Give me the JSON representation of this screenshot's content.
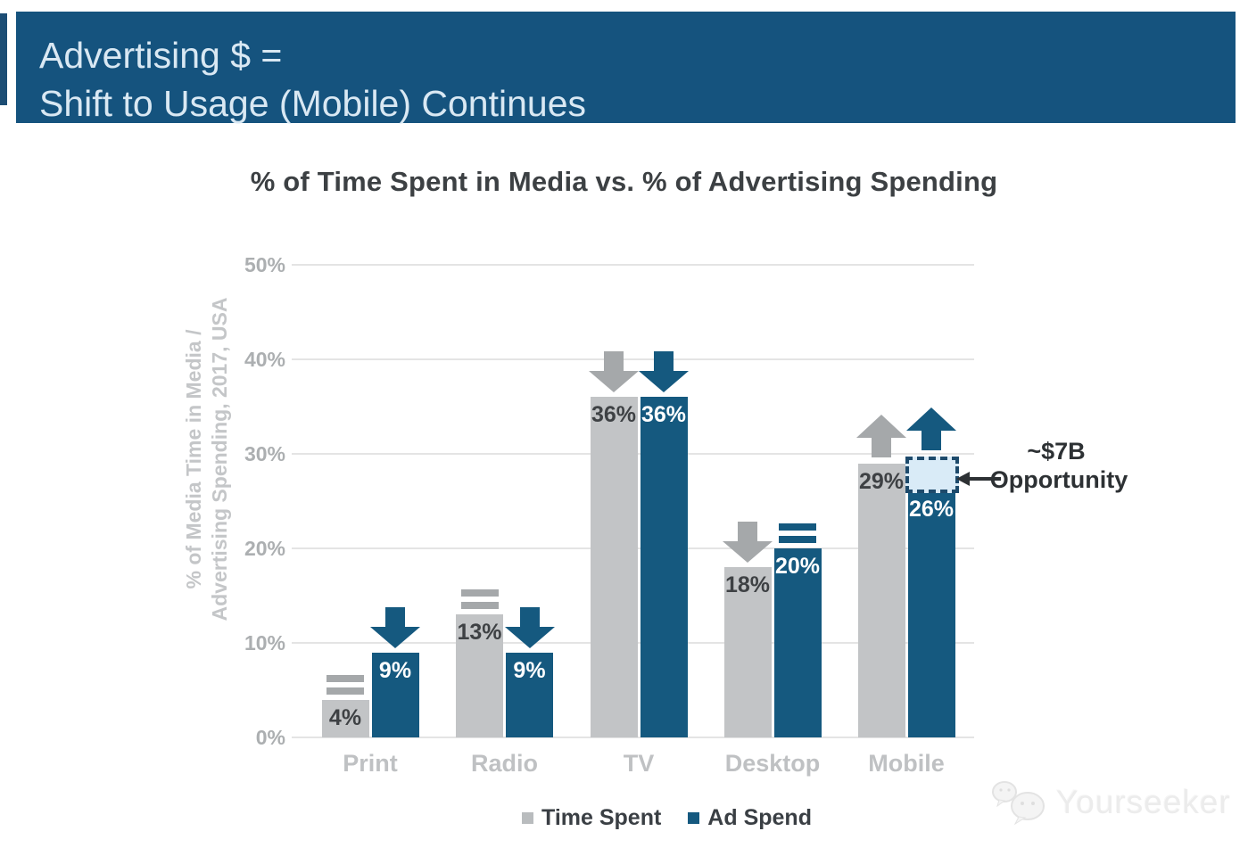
{
  "header": {
    "line1": "Advertising $ =",
    "line2": "Shift to Usage (Mobile) Continues"
  },
  "chart_data": {
    "type": "bar",
    "title": "% of Time Spent in Media vs. % of Advertising Spending",
    "ylabel_lines": [
      "% of Media Time in Media /",
      "Advertising Spending, 2017, USA"
    ],
    "categories": [
      "Print",
      "Radio",
      "TV",
      "Desktop",
      "Mobile"
    ],
    "series": [
      {
        "name": "Time Spent",
        "color": "#C2C4C6",
        "label_color": "#3E4144",
        "indicator_color": "#A5A8AA",
        "values": [
          4,
          13,
          36,
          18,
          29
        ],
        "trend": [
          "flat",
          "flat",
          "down",
          "down",
          "up"
        ]
      },
      {
        "name": "Ad Spend",
        "color": "#15597F",
        "label_color": "#FFFFFF",
        "indicator_color": "#15597F",
        "values": [
          9,
          9,
          36,
          20,
          26
        ],
        "trend": [
          "down",
          "down",
          "down",
          "flat",
          "up"
        ]
      }
    ],
    "value_suffix": "%",
    "yticks": [
      "0%",
      "10%",
      "20%",
      "30%",
      "40%",
      "50%"
    ],
    "ylim": [
      0,
      50
    ],
    "grid": true,
    "legend_position": "bottom",
    "annotation": {
      "line1": "~$7B",
      "line2": "Opportunity",
      "target_category": "Mobile",
      "target_series": "Ad Spend",
      "box_top_value": 29.7,
      "box_fill": "#D9EBF7",
      "box_border": "#1D4A6B"
    }
  },
  "legend": [
    {
      "label": "Time Spent",
      "color": "#B9BCBE"
    },
    {
      "label": "Ad Spend",
      "color": "#15597F"
    }
  ],
  "watermark": {
    "text": "Yourseeker"
  },
  "colors": {
    "banner_bg": "#15537E",
    "banner_text": "#D9E8F3",
    "bar_gray": "#C2C4C6",
    "bar_blue": "#15597F",
    "gridline": "#E4E4E4",
    "tick_text": "#ACAFB1",
    "axis_title": "#C4C6C8",
    "category_text": "#BFC1C3",
    "title_text": "#3C4043",
    "annotation_text": "#2D3134"
  }
}
